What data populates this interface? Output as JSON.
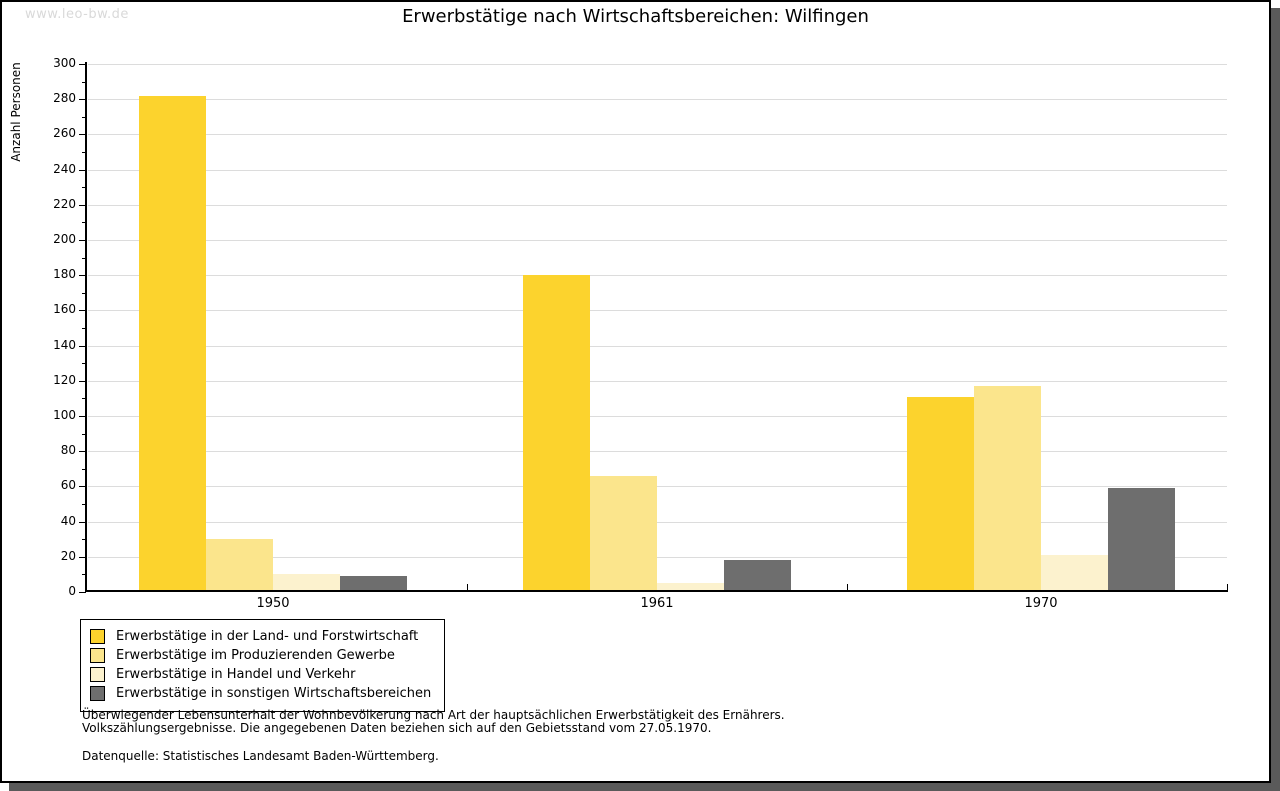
{
  "watermark": "www.leo-bw.de",
  "title": "Erwerbstätige nach Wirtschaftsbereichen: Wilfingen",
  "chart_data": {
    "type": "bar",
    "title": "Erwerbstätige nach Wirtschaftsbereichen: Wilfingen",
    "xlabel": "",
    "ylabel": "Anzahl Personen",
    "categories": [
      "1950",
      "1961",
      "1970"
    ],
    "series": [
      {
        "name": "Erwerbstätige in der Land- und Forstwirtschaft",
        "color": "#fcd32d",
        "values": [
          282,
          180,
          111
        ]
      },
      {
        "name": "Erwerbstätige im Produzierenden Gewerbe",
        "color": "#fbe58c",
        "values": [
          30,
          66,
          117
        ]
      },
      {
        "name": "Erwerbstätige in Handel und Verkehr",
        "color": "#fcf2ce",
        "values": [
          10,
          5,
          21
        ]
      },
      {
        "name": "Erwerbstätige in sonstigen Wirtschaftsbereichen",
        "color": "#6e6e6e",
        "values": [
          9,
          18,
          59
        ]
      }
    ],
    "ylim": [
      0,
      300
    ],
    "ytick_step": 20,
    "ytick_minor_step": 10,
    "grid": true,
    "legend_position": "bottom-left",
    "gridline_color": "#dcdcdc",
    "axis_color": "#000000"
  },
  "footer": {
    "line1": "Überwiegender Lebensunterhalt der Wohnbevölkerung nach Art der hauptsächlichen Erwerbstätigkeit des Ernährers.",
    "line2": "Volkszählungsergebnisse. Die angegebenen Daten beziehen sich auf den Gebietsstand vom 27.05.1970.",
    "source": "Datenquelle: Statistisches Landesamt Baden-Württemberg."
  }
}
